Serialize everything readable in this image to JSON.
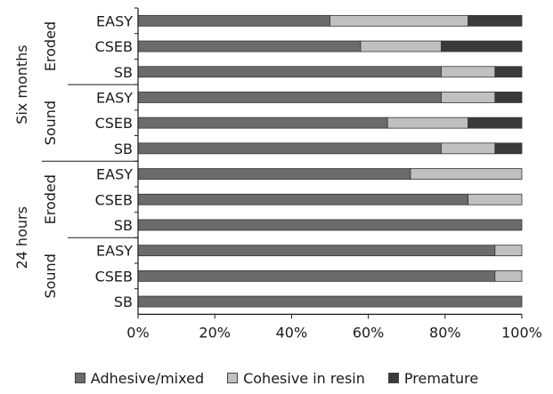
{
  "chart_data": {
    "type": "bar",
    "orientation": "horizontal",
    "stacked": true,
    "x_axis": {
      "ticks": [
        "0%",
        "20%",
        "40%",
        "60%",
        "80%",
        "100%"
      ],
      "range": [
        0,
        100
      ]
    },
    "group_labels": {
      "time": [
        "Six months",
        "24 hours"
      ],
      "condition": [
        "Eroded",
        "Sound",
        "Eroded",
        "Sound"
      ]
    },
    "categories": [
      "EASY",
      "CSEB",
      "SB",
      "EASY",
      "CSEB",
      "SB",
      "EASY",
      "CSEB",
      "SB",
      "EASY",
      "CSEB",
      "SB"
    ],
    "series": [
      {
        "name": "Adhesive/mixed",
        "color": "#6b6b6b",
        "values": [
          50,
          58,
          79,
          79,
          65,
          79,
          71,
          86,
          100,
          93,
          93,
          100
        ]
      },
      {
        "name": "Cohesive in resin",
        "color": "#c0c0c0",
        "values": [
          36,
          21,
          14,
          14,
          21,
          14,
          29,
          14,
          0,
          7,
          7,
          0
        ]
      },
      {
        "name": "Premature",
        "color": "#3a3a3a",
        "values": [
          14,
          21,
          7,
          7,
          14,
          7,
          0,
          0,
          0,
          0,
          0,
          0
        ]
      }
    ],
    "legend_position": "bottom",
    "grid": false
  }
}
